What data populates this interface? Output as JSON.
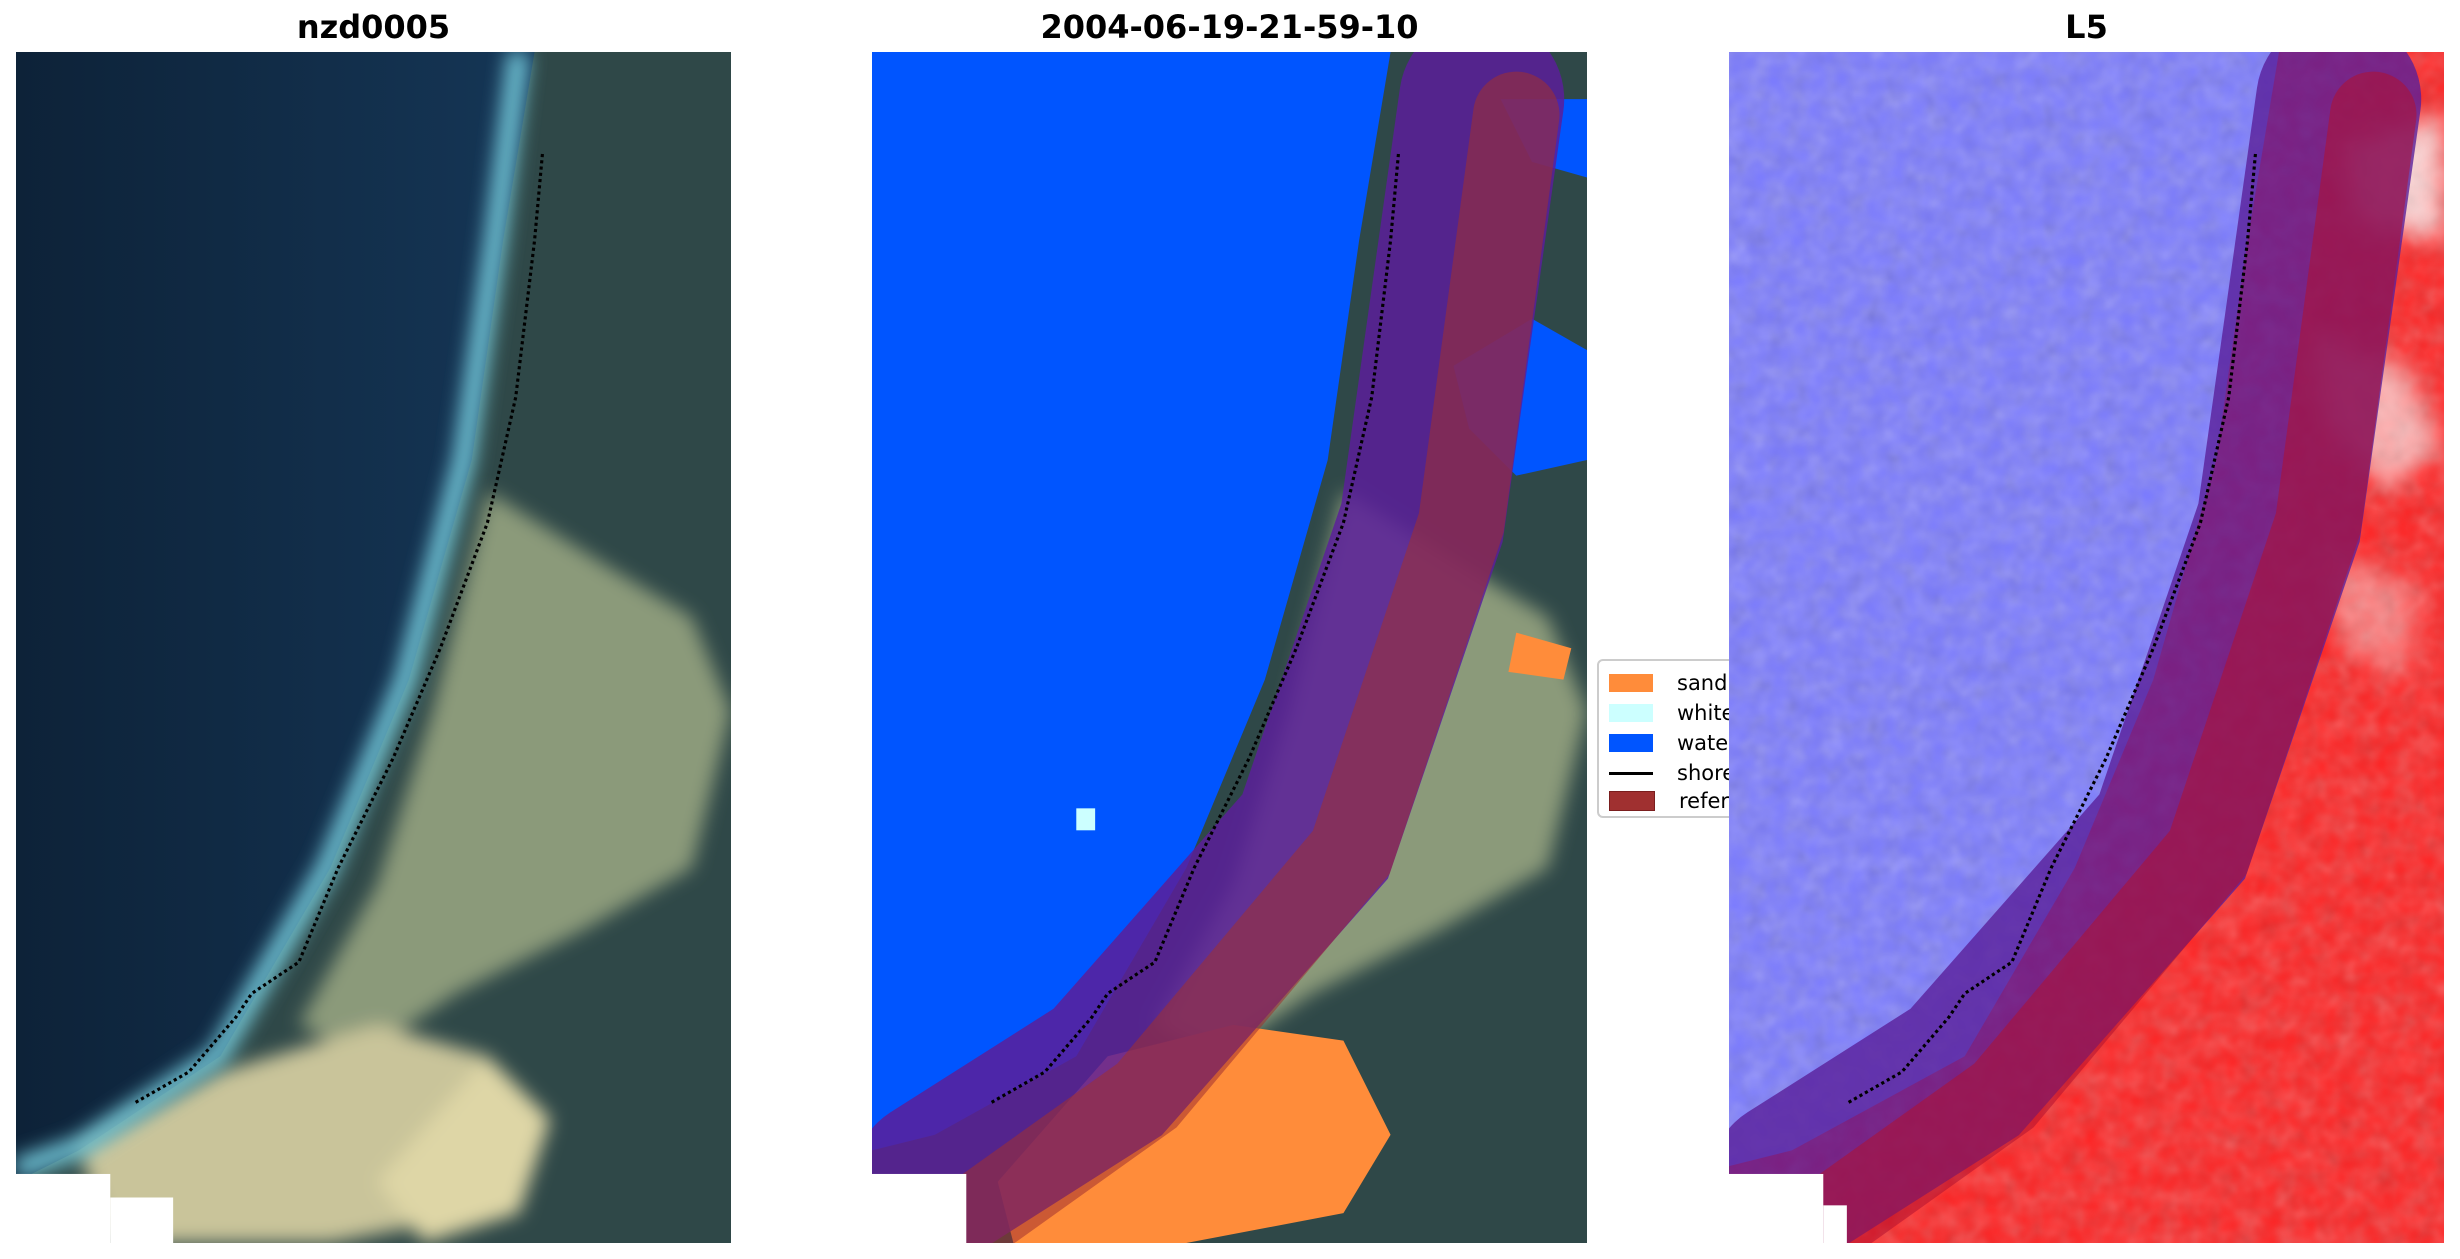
{
  "panels": [
    {
      "title": "nzd0005"
    },
    {
      "title": "2004-06-19-21-59-10"
    },
    {
      "title": "L5"
    }
  ],
  "legend": {
    "placement": "center-right of middle panel",
    "items": [
      {
        "label": "sand",
        "color": "#ff8c3a"
      },
      {
        "label": "whitewater",
        "color": "#ccffff"
      },
      {
        "label": "water",
        "color": "#0055ff"
      },
      {
        "label": "shoreline",
        "color": "#000000"
      },
      {
        "label": "reference",
        "color": "#a03030"
      }
    ]
  }
}
